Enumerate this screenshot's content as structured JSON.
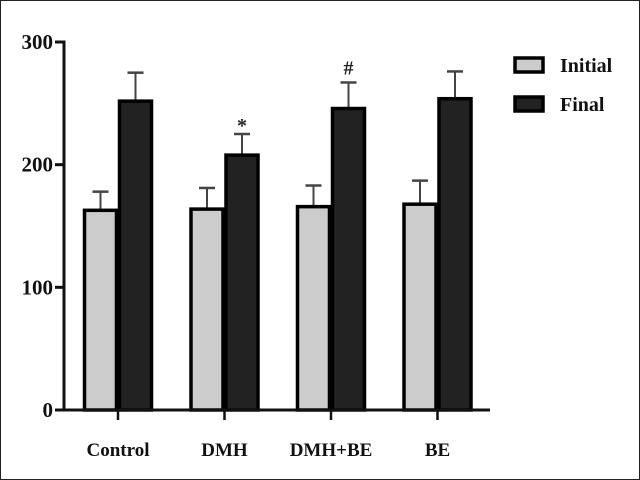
{
  "chart_data": {
    "type": "bar",
    "title": "",
    "xlabel": "",
    "ylabel": "",
    "ylim": [
      0,
      300
    ],
    "yticks": [
      0,
      100,
      200,
      300
    ],
    "grid": false,
    "legend_position": "upper right (outside plot)",
    "categories": [
      "Control",
      "DMH",
      "DMH+BE",
      "BE"
    ],
    "series": [
      {
        "name": "Initial",
        "color": "#cccccc",
        "values": [
          164,
          165,
          167,
          169
        ],
        "error": [
          14,
          16,
          16,
          18
        ]
      },
      {
        "name": "Final",
        "color": "#222222",
        "values": [
          253,
          209,
          247,
          255
        ],
        "error": [
          22,
          16,
          20,
          21
        ]
      }
    ],
    "annotations": [
      {
        "category": "DMH",
        "series": "Final",
        "text": "*"
      },
      {
        "category": "DMH+BE",
        "series": "Final",
        "text": "#"
      }
    ]
  },
  "legend": {
    "items": [
      {
        "label": "Initial",
        "color": "#cccccc"
      },
      {
        "label": "Final",
        "color": "#222222"
      }
    ]
  }
}
